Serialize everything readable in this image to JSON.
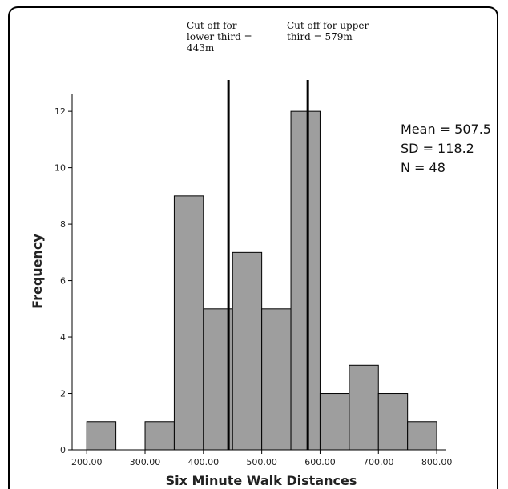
{
  "chart_data": {
    "type": "bar",
    "xlabel": "Six Minute Walk Distances",
    "ylabel": "Frequency",
    "bin_width": 50,
    "bins": [
      {
        "start": 200,
        "end": 250,
        "count": 1
      },
      {
        "start": 250,
        "end": 300,
        "count": 0
      },
      {
        "start": 300,
        "end": 350,
        "count": 1
      },
      {
        "start": 350,
        "end": 400,
        "count": 9
      },
      {
        "start": 400,
        "end": 450,
        "count": 5
      },
      {
        "start": 450,
        "end": 500,
        "count": 7
      },
      {
        "start": 500,
        "end": 550,
        "count": 5
      },
      {
        "start": 550,
        "end": 600,
        "count": 12
      },
      {
        "start": 600,
        "end": 650,
        "count": 2
      },
      {
        "start": 650,
        "end": 700,
        "count": 3
      },
      {
        "start": 700,
        "end": 750,
        "count": 2
      },
      {
        "start": 750,
        "end": 800,
        "count": 1
      }
    ],
    "x_ticks": [
      200,
      300,
      400,
      500,
      600,
      700,
      800
    ],
    "x_tick_labels": [
      "200.00",
      "300.00",
      "400.00",
      "500.00",
      "600.00",
      "700.00",
      "800.00"
    ],
    "y_ticks": [
      0,
      2,
      4,
      6,
      8,
      10,
      12
    ],
    "y_tick_labels": [
      "0",
      "2",
      "4",
      "6",
      "8",
      "10",
      "12"
    ],
    "xlim": [
      175,
      815
    ],
    "ylim": [
      0,
      12.6
    ],
    "bar_color": "#9e9e9e",
    "grid": false,
    "cutoff_lines": [
      {
        "x": 443,
        "label_lines": [
          "Cut off for",
          "lower third =",
          "443m"
        ]
      },
      {
        "x": 579,
        "label_lines": [
          "Cut off for upper",
          "third = 579m"
        ]
      }
    ],
    "stats": [
      "Mean = 507.5",
      "SD = 118.2",
      "N = 48"
    ]
  }
}
